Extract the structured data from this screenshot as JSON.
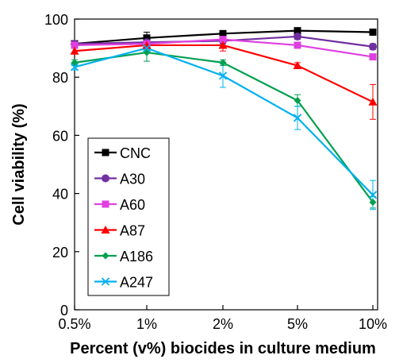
{
  "chart_data": {
    "type": "line",
    "title": "",
    "xlabel": "Percent (v%) biocides in culture medium",
    "ylabel": "Cell viability (%)",
    "categories": [
      "0.5%",
      "1%",
      "2%",
      "5%",
      "10%"
    ],
    "ylim": [
      0,
      100
    ],
    "yticks": [
      0,
      20,
      40,
      60,
      80,
      100
    ],
    "grid": false,
    "legend_position": "bottom-left",
    "series": [
      {
        "name": "CNC",
        "color": "#000000",
        "marker": "square",
        "values": [
          91.5,
          93.5,
          95,
          96,
          95.5
        ],
        "errors": [
          1,
          2,
          1,
          1,
          1
        ]
      },
      {
        "name": "A30",
        "color": "#7030A0",
        "marker": "circle",
        "values": [
          91.5,
          92,
          92.5,
          94,
          90.5
        ],
        "errors": [
          1,
          1,
          1,
          1,
          1
        ]
      },
      {
        "name": "A60",
        "color": "#E040E0",
        "marker": "square",
        "values": [
          91,
          91.5,
          93,
          91,
          87
        ],
        "errors": [
          1,
          1,
          1,
          1,
          1
        ]
      },
      {
        "name": "A87",
        "color": "#FF0000",
        "marker": "triangle",
        "values": [
          89,
          91,
          91,
          84,
          71.5
        ],
        "errors": [
          1,
          2,
          2,
          1,
          6
        ]
      },
      {
        "name": "A186",
        "color": "#00A050",
        "marker": "diamond",
        "values": [
          85,
          88.5,
          85,
          72,
          37
        ],
        "errors": [
          1,
          3,
          1,
          2,
          2
        ]
      },
      {
        "name": "A247",
        "color": "#00B0F0",
        "marker": "x",
        "values": [
          83.5,
          90,
          80.5,
          66,
          39.5
        ],
        "errors": [
          1,
          1,
          4,
          4,
          5
        ]
      }
    ]
  }
}
